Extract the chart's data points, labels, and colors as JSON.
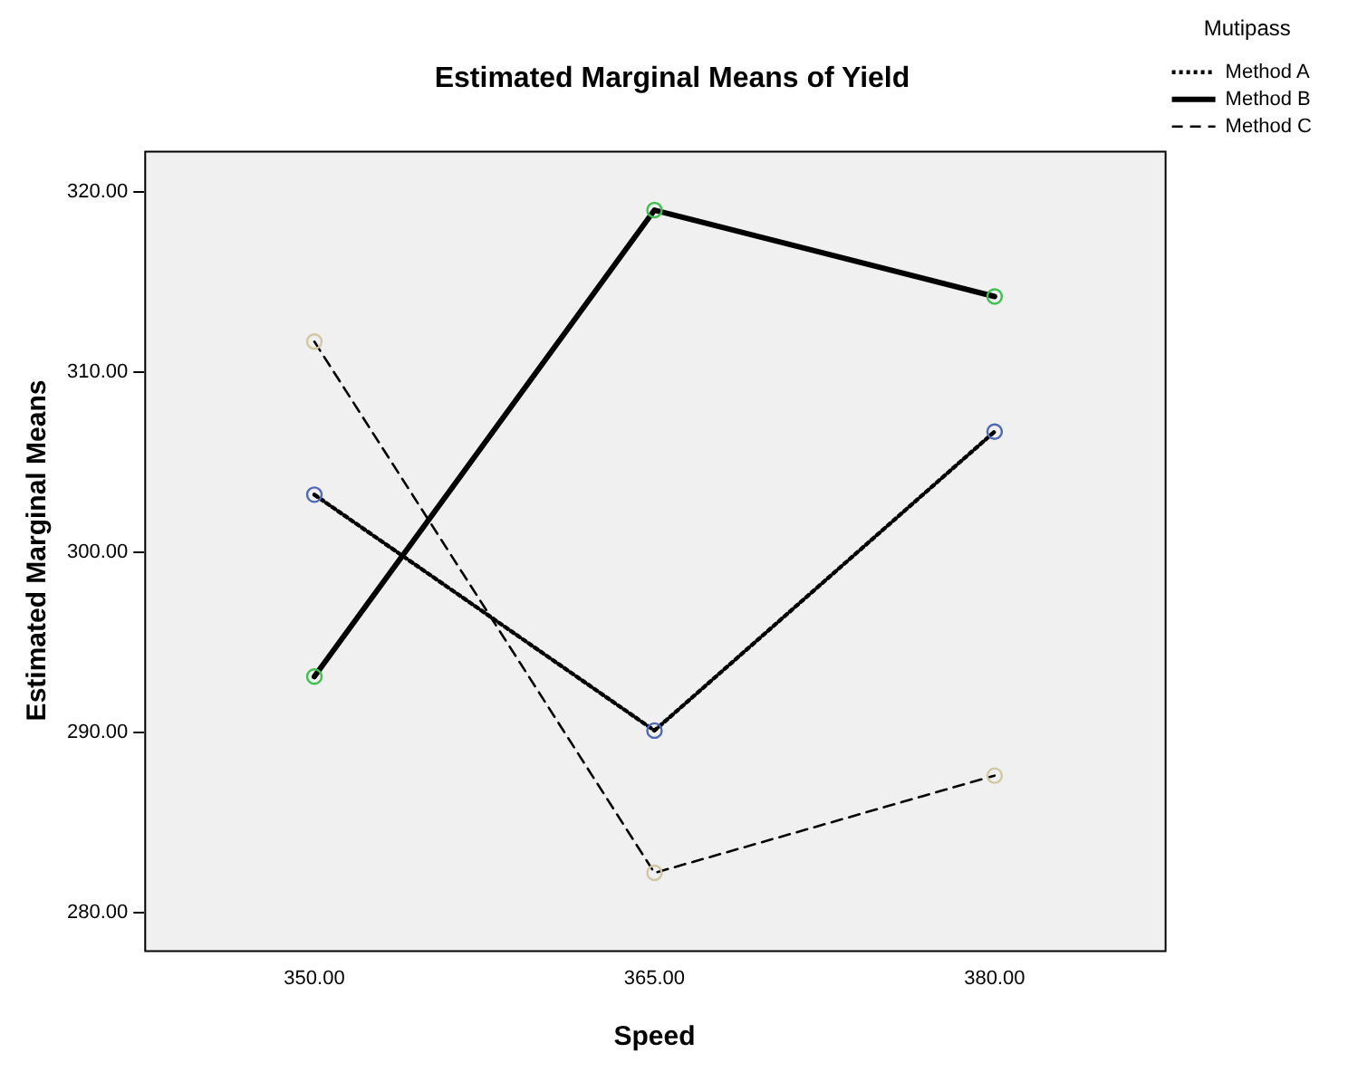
{
  "chart_data": {
    "type": "line",
    "title": "Estimated Marginal Means of Yield",
    "xlabel": "Speed",
    "ylabel": "Estimated Marginal Means",
    "legend_title": "Mutipass",
    "legend": "right",
    "marker": "circle",
    "grid": false,
    "categories": [
      "350.00",
      "365.00",
      "380.00"
    ],
    "ylim": [
      277.9,
      322.3
    ],
    "yticks": [
      {
        "value": 280,
        "label": "280.00"
      },
      {
        "value": 290,
        "label": "290.00"
      },
      {
        "value": 300,
        "label": "300.00"
      },
      {
        "value": 310,
        "label": "310.00"
      },
      {
        "value": 320,
        "label": "320.00"
      }
    ],
    "series": [
      {
        "name": "Method A",
        "color": "#000000",
        "colors": [
          "#5068b8",
          "#5068b8",
          "#5068b8"
        ],
        "line_style": "dotted",
        "values": [
          303.2,
          290.1,
          306.7
        ]
      },
      {
        "name": "Method B",
        "color": "#000000",
        "colors": [
          "#40c050",
          "#40c050",
          "#40c050"
        ],
        "line_style": "solid",
        "values": [
          293.1,
          319.0,
          314.2
        ]
      },
      {
        "name": "Method C",
        "color": "#000000",
        "colors": [
          "#d0c8a0",
          "#d0c8a0",
          "#d0c8a0"
        ],
        "line_style": "dashed",
        "values": [
          311.7,
          282.2,
          287.6
        ]
      }
    ]
  }
}
